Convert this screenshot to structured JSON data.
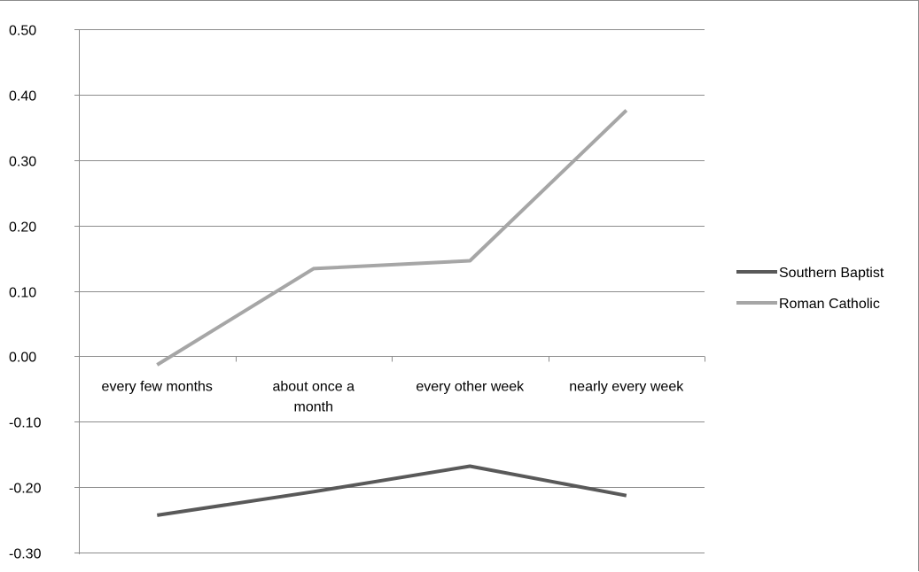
{
  "chart_data": {
    "type": "line",
    "title": "",
    "xlabel": "",
    "ylabel": "",
    "categories": [
      "every few months",
      "about once a month",
      "every other week",
      "nearly every week"
    ],
    "category_lines": [
      [
        "every few months"
      ],
      [
        "about once a",
        "month"
      ],
      [
        "every other week"
      ],
      [
        "nearly every week"
      ]
    ],
    "ylim": [
      -0.3,
      0.5
    ],
    "yticks": [
      0.5,
      0.4,
      0.3,
      0.2,
      0.1,
      0.0,
      -0.1,
      -0.2,
      -0.3
    ],
    "ytick_labels": [
      "0.50",
      "0.40",
      "0.30",
      "0.20",
      "0.10",
      "0.00",
      "-0.10",
      "-0.20",
      "-0.30"
    ],
    "grid": true,
    "legend_position": "right",
    "series": [
      {
        "name": "Southern Baptist",
        "color": "#595959",
        "values": [
          -0.243,
          -0.207,
          -0.168,
          -0.213
        ]
      },
      {
        "name": "Roman Catholic",
        "color": "#a6a6a6",
        "values": [
          -0.013,
          0.134,
          0.146,
          0.376
        ]
      }
    ]
  }
}
